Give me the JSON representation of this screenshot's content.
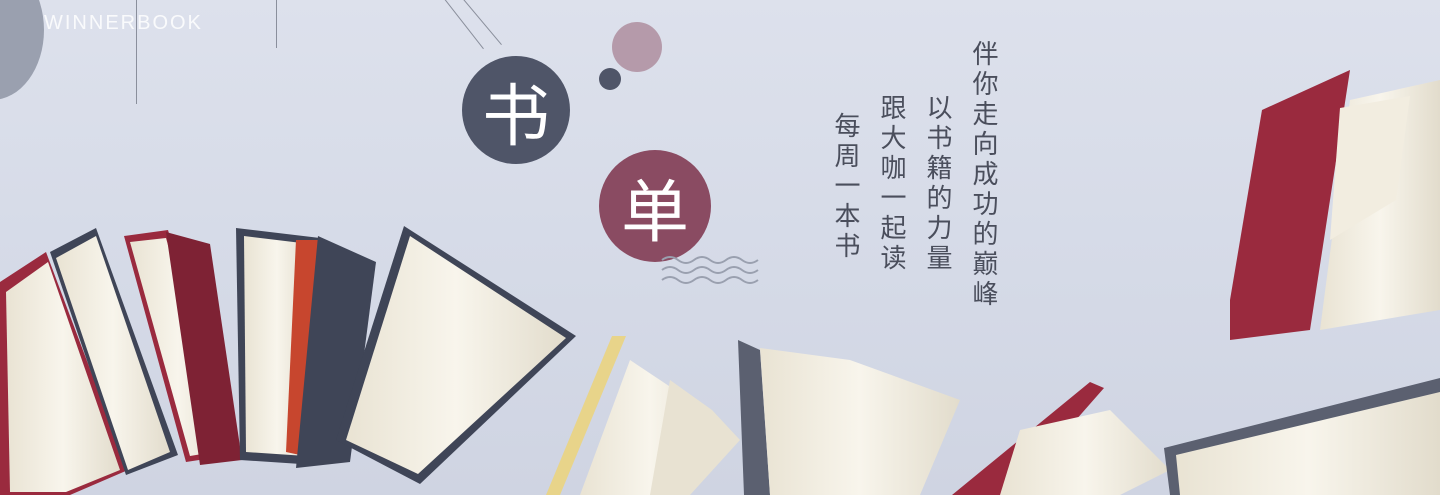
{
  "brand": {
    "name": "WINNERBOOK"
  },
  "title": {
    "char1": "书",
    "char2": "单"
  },
  "poem": {
    "line1": "伴你走向成功的巅峰",
    "line2": "以书籍的力量",
    "line3": "跟大咖一起读",
    "line4": "每周一本书"
  },
  "colors": {
    "background": "#d5dae7",
    "navy": "#4f5568",
    "maroon": "#8a4b62",
    "pink": "#b59aaa",
    "book_red": "#9a2a3e",
    "pages": "#f3efe4"
  }
}
